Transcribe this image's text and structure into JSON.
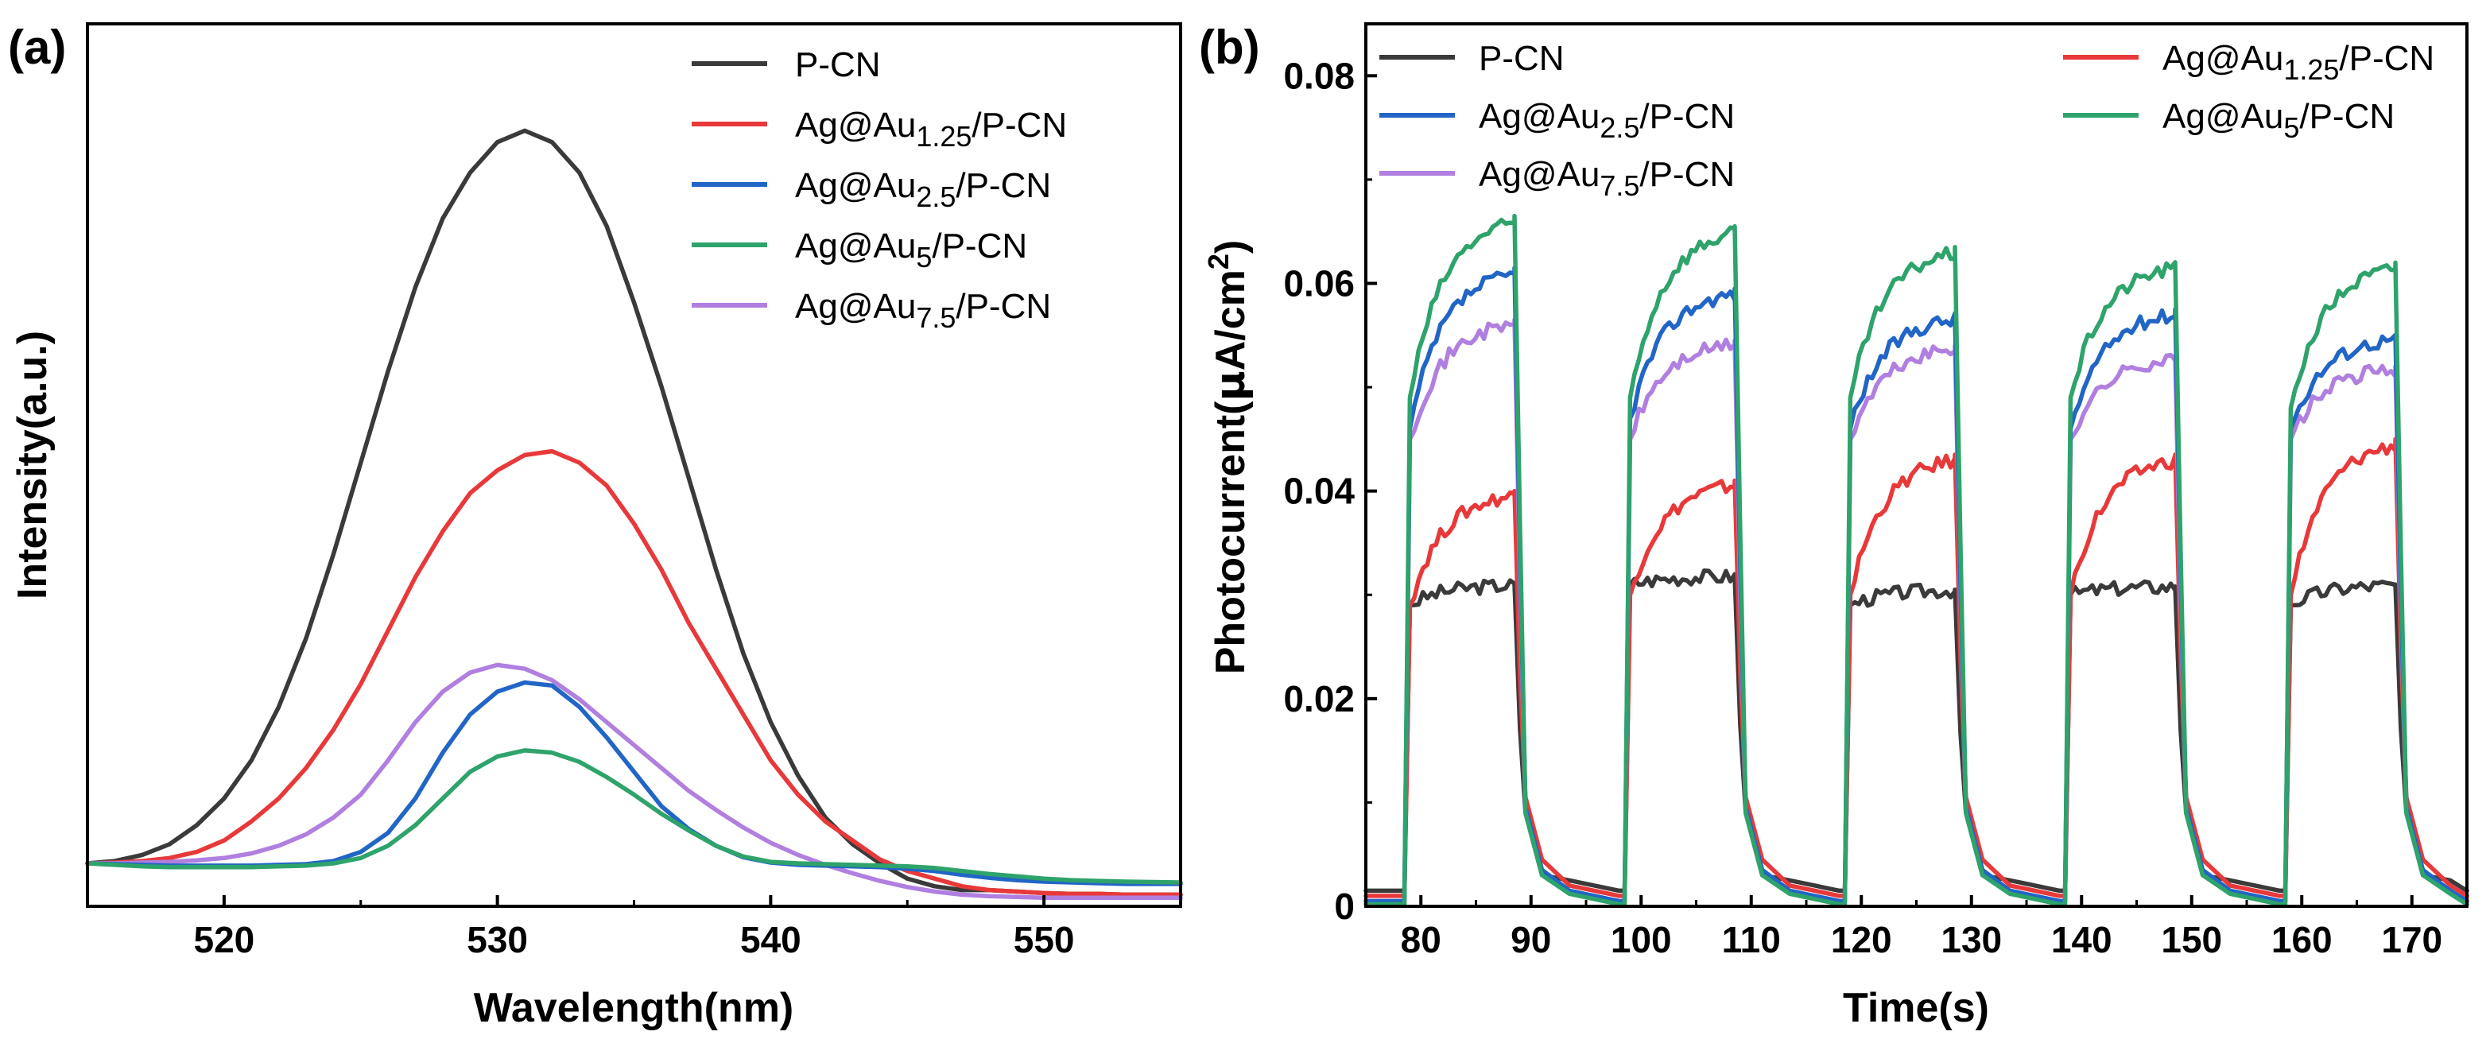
{
  "chart_data": [
    {
      "panel": "(a)",
      "type": "line",
      "xlabel": "Wavelength(nm)",
      "ylabel": "Intensity(a.u.)",
      "xlim": [
        515,
        555
      ],
      "ylim": [
        0,
        100
      ],
      "xticks": [
        520,
        530,
        540,
        550
      ],
      "xtick_labels": [
        "520",
        "530",
        "540",
        "550"
      ],
      "yticks_shown": false,
      "series": [
        {
          "name": "P-CN",
          "legend": {
            "base": "P-CN",
            "sub": "",
            "suffix": ""
          },
          "color": "#3a3a3a",
          "x": [
            515,
            516,
            517,
            518,
            519,
            520,
            521,
            522,
            523,
            524,
            525,
            526,
            527,
            528,
            529,
            530,
            531,
            532,
            533,
            534,
            535,
            536,
            537,
            538,
            539,
            540,
            541,
            542,
            543,
            544,
            545,
            546,
            547,
            548,
            549,
            550,
            551,
            552,
            553,
            554,
            555
          ],
          "y": [
            2.5,
            2.8,
            3.6,
            5.0,
            7.5,
            11,
            16,
            23,
            32,
            43,
            55,
            67,
            78,
            87,
            93,
            97,
            98.5,
            97,
            93,
            86,
            76,
            65,
            53,
            41,
            30,
            21,
            14,
            8.5,
            5,
            2.5,
            0.5,
            -0.5,
            -1,
            -1,
            -1.2,
            -1.4,
            -1.5,
            -1.5,
            -1.6,
            -1.6,
            -1.6
          ]
        },
        {
          "name": "Ag@Au1.25/P-CN",
          "legend": {
            "base": "Ag@Au",
            "sub": "1.25",
            "suffix": "/P-CN"
          },
          "color": "#e8393a",
          "x": [
            515,
            516,
            517,
            518,
            519,
            520,
            521,
            522,
            523,
            524,
            525,
            526,
            527,
            528,
            529,
            530,
            531,
            532,
            533,
            534,
            535,
            536,
            537,
            538,
            539,
            540,
            541,
            542,
            543,
            544,
            545,
            546,
            547,
            548,
            549,
            550,
            551,
            552,
            553,
            554,
            555
          ],
          "y": [
            2.5,
            2.6,
            2.8,
            3.2,
            4,
            5.5,
            8,
            11,
            15,
            20,
            26,
            33,
            40,
            46,
            51,
            54,
            56,
            56.5,
            55,
            52,
            47,
            41,
            34,
            28,
            22,
            16,
            11.5,
            8,
            5.5,
            3,
            1.5,
            0.5,
            -0.5,
            -1,
            -1.2,
            -1.4,
            -1.5,
            -1.5,
            -1.6,
            -1.6,
            -1.6
          ]
        },
        {
          "name": "Ag@Au2.5/P-CN",
          "legend": {
            "base": "Ag@Au",
            "sub": "2.5",
            "suffix": "/P-CN"
          },
          "color": "#2165c6",
          "x": [
            515,
            516,
            517,
            518,
            519,
            520,
            521,
            522,
            523,
            524,
            525,
            526,
            527,
            528,
            529,
            530,
            531,
            532,
            533,
            534,
            535,
            536,
            537,
            538,
            539,
            540,
            541,
            542,
            543,
            544,
            545,
            546,
            547,
            548,
            549,
            550,
            551,
            552,
            553,
            554,
            555
          ],
          "y": [
            2.5,
            2.4,
            2.3,
            2.2,
            2.2,
            2.2,
            2.2,
            2.3,
            2.4,
            2.8,
            4,
            6.5,
            11,
            17,
            22,
            25,
            26.2,
            25.8,
            23,
            19,
            14.5,
            10,
            7,
            4.8,
            3.3,
            2.6,
            2.3,
            2.2,
            2.1,
            2.0,
            1.8,
            1.5,
            1.0,
            0.6,
            0.3,
            0.1,
            0,
            -0.1,
            -0.2,
            -0.2,
            -0.2
          ]
        },
        {
          "name": "Ag@Au5/P-CN",
          "legend": {
            "base": "Ag@Au",
            "sub": "5",
            "suffix": "/P-CN"
          },
          "color": "#2ea36b",
          "x": [
            515,
            516,
            517,
            518,
            519,
            520,
            521,
            522,
            523,
            524,
            525,
            526,
            527,
            528,
            529,
            530,
            531,
            532,
            533,
            534,
            535,
            536,
            537,
            538,
            539,
            540,
            541,
            542,
            543,
            544,
            545,
            546,
            547,
            548,
            549,
            550,
            551,
            552,
            553,
            554,
            555
          ],
          "y": [
            2.5,
            2.3,
            2.1,
            2.0,
            2.0,
            2.0,
            2.0,
            2.1,
            2.2,
            2.5,
            3.2,
            4.8,
            7.5,
            11,
            14.5,
            16.5,
            17.3,
            17,
            15.8,
            13.8,
            11.5,
            9,
            6.8,
            4.8,
            3.4,
            2.7,
            2.5,
            2.4,
            2.3,
            2.2,
            2.1,
            1.9,
            1.5,
            1.1,
            0.8,
            0.5,
            0.3,
            0.2,
            0.1,
            0.05,
            0
          ]
        },
        {
          "name": "Ag@Au7.5/P-CN",
          "legend": {
            "base": "Ag@Au",
            "sub": "7.5",
            "suffix": "/P-CN"
          },
          "color": "#b07fe0",
          "x": [
            515,
            516,
            517,
            518,
            519,
            520,
            521,
            522,
            523,
            524,
            525,
            526,
            527,
            528,
            529,
            530,
            531,
            532,
            533,
            534,
            535,
            536,
            537,
            538,
            539,
            540,
            541,
            542,
            543,
            544,
            545,
            546,
            547,
            548,
            549,
            550,
            551,
            552,
            553,
            554,
            555
          ],
          "y": [
            2.5,
            2.5,
            2.6,
            2.7,
            2.9,
            3.2,
            3.8,
            4.8,
            6.3,
            8.5,
            11.5,
            16,
            21,
            25,
            27.5,
            28.5,
            28,
            26.5,
            24,
            21,
            18,
            15,
            12,
            9.5,
            7.2,
            5.2,
            3.6,
            2.3,
            1.2,
            0.2,
            -0.6,
            -1.2,
            -1.6,
            -1.8,
            -1.9,
            -2,
            -2,
            -2,
            -2,
            -2,
            -2
          ]
        }
      ]
    },
    {
      "panel": "(b)",
      "type": "line",
      "xlabel": "Time(s)",
      "ylabel_base": "Photocurrent(",
      "ylabel_mu": "μ",
      "ylabel_mid": "A/cm",
      "ylabel_sup": "2",
      "ylabel_end": ")",
      "xlim": [
        75,
        175
      ],
      "ylim": [
        0,
        0.085
      ],
      "xticks": [
        80,
        90,
        100,
        110,
        120,
        130,
        140,
        150,
        160,
        170
      ],
      "xtick_labels": [
        "80",
        "90",
        "100",
        "110",
        "120",
        "130",
        "140",
        "150",
        "160",
        "170"
      ],
      "yticks": [
        0,
        0.02,
        0.04,
        0.06,
        0.08
      ],
      "ytick_labels": [
        "0",
        "0.02",
        "0.04",
        "0.06",
        "0.08"
      ],
      "light_on_s": [
        79,
        99,
        119,
        139,
        159
      ],
      "light_off_s": [
        88.5,
        108.5,
        128.5,
        148.5,
        168.5
      ],
      "series": [
        {
          "name": "P-CN",
          "legend": {
            "base": "P-CN",
            "sub": "",
            "suffix": ""
          },
          "color": "#3a3a3a",
          "plateaus": [
            0.031,
            0.0318,
            0.0305,
            0.0308,
            0.031
          ],
          "rise": [
            0.029,
            0.031,
            0.029,
            0.03,
            0.029
          ],
          "tail": 0.003,
          "base": 0.0015
        },
        {
          "name": "Ag@Au1.25/P-CN",
          "legend": {
            "base": "Ag@Au",
            "sub": "1.25",
            "suffix": "/P-CN"
          },
          "color": "#e8393a",
          "plateaus": [
            0.04,
            0.041,
            0.0435,
            0.0435,
            0.045
          ],
          "rise": [
            0.029,
            0.03,
            0.03,
            0.03,
            0.03
          ],
          "tail": 0.0045,
          "base": 0.001
        },
        {
          "name": "Ag@Au2.5/P-CN",
          "legend": {
            "base": "Ag@Au",
            "sub": "2.5",
            "suffix": "/P-CN"
          },
          "color": "#2165c6",
          "plateaus": [
            0.0615,
            0.0595,
            0.057,
            0.0575,
            0.055
          ],
          "rise": [
            0.046,
            0.047,
            0.046,
            0.046,
            0.046
          ],
          "tail": 0.0035,
          "base": 0.0005
        },
        {
          "name": "Ag@Au5/P-CN",
          "legend": {
            "base": "Ag@Au",
            "sub": "5",
            "suffix": "/P-CN"
          },
          "color": "#2ea36b",
          "plateaus": [
            0.0665,
            0.0655,
            0.0635,
            0.062,
            0.062
          ],
          "rise": [
            0.049,
            0.049,
            0.049,
            0.049,
            0.048
          ],
          "tail": 0.003,
          "base": 0.0002
        },
        {
          "name": "Ag@Au7.5/P-CN",
          "legend": {
            "base": "Ag@Au",
            "sub": "7.5",
            "suffix": "/P-CN"
          },
          "color": "#b07fe0",
          "plateaus": [
            0.0565,
            0.0545,
            0.054,
            0.053,
            0.052
          ],
          "rise": [
            0.045,
            0.045,
            0.045,
            0.045,
            0.045
          ],
          "tail": 0.003,
          "base": 0.0005
        }
      ]
    }
  ]
}
